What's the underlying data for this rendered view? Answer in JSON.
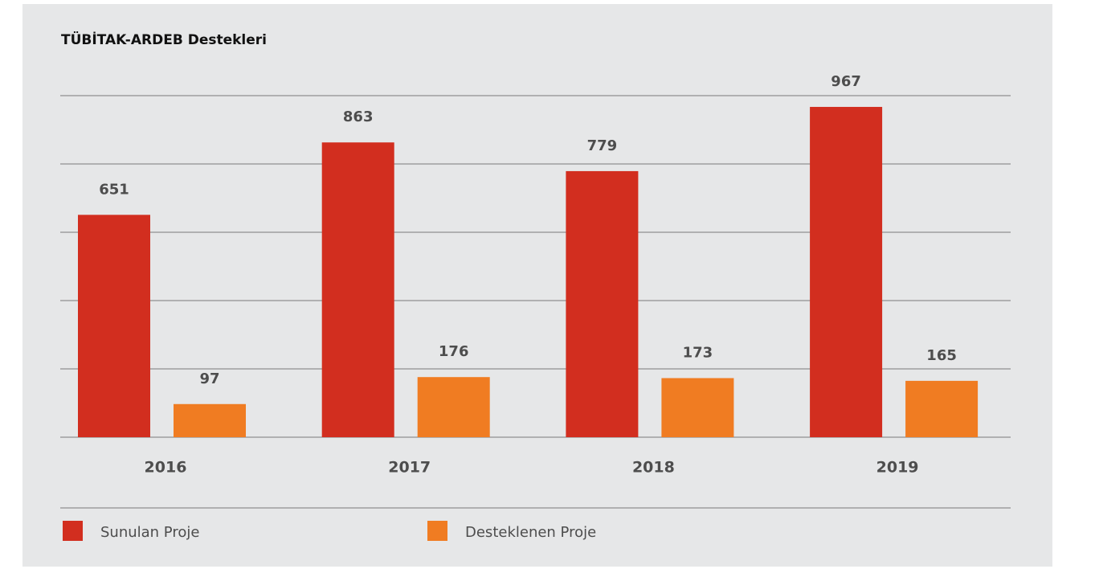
{
  "chart_data": {
    "type": "bar",
    "title": "TÜBİTAK-ARDEB Destekleri",
    "categories": [
      "2016",
      "2017",
      "2018",
      "2019"
    ],
    "series": [
      {
        "name": "Sunulan Proje",
        "color": "#d22e1f",
        "values": [
          651,
          863,
          779,
          967
        ]
      },
      {
        "name": "Desteklenen Proje",
        "color": "#f07c22",
        "values": [
          97,
          176,
          173,
          165
        ]
      }
    ],
    "ylim": [
      0,
      1000
    ],
    "yticks": [
      0,
      200,
      400,
      600,
      800,
      1000
    ],
    "grid": true
  }
}
